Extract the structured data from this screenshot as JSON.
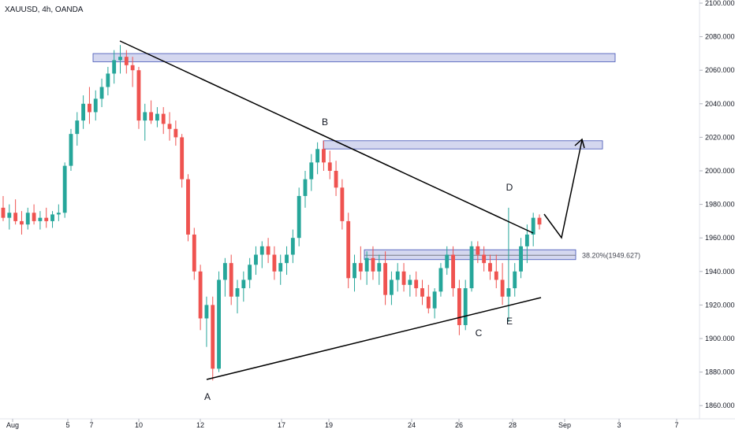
{
  "chart_data": {
    "type": "candlestick",
    "title": "XAUUSD, 4h, OANDA",
    "y_axis": {
      "ticks": [
        "2100.000",
        "2080.000",
        "2060.000",
        "2040.000",
        "2020.000",
        "2000.000",
        "1980.000",
        "1960.000",
        "1940.000",
        "1920.000",
        "1900.000",
        "1880.000",
        "1860.000"
      ],
      "range": [
        1840,
        2105
      ]
    },
    "x_axis": {
      "ticks": [
        "Aug",
        "5",
        "7",
        "10",
        "12",
        "17",
        "19",
        "24",
        "26",
        "28",
        "Sep",
        "3",
        "7"
      ]
    },
    "colors": {
      "up": "#26a69a",
      "down": "#ef5350",
      "zone_fill": "#c5cae9",
      "zone_border": "#3f51b5",
      "line": "#000000"
    },
    "pattern_points": [
      "A",
      "B",
      "C",
      "D",
      "E"
    ],
    "resistance_zones": [
      {
        "low": 2066,
        "high": 2069
      },
      {
        "low": 2014,
        "high": 2017
      },
      {
        "low": 1948,
        "high": 1952
      }
    ],
    "fib_level": {
      "label": "38.20%(1949.627)",
      "value": 1949.627
    },
    "candles": [
      [
        1978,
        1985,
        1970,
        1972
      ],
      [
        1972,
        1980,
        1965,
        1975
      ],
      [
        1975,
        1983,
        1968,
        1970
      ],
      [
        1970,
        1976,
        1962,
        1968
      ],
      [
        1968,
        1978,
        1965,
        1975
      ],
      [
        1975,
        1980,
        1968,
        1970
      ],
      [
        1970,
        1976,
        1965,
        1972
      ],
      [
        1972,
        1978,
        1966,
        1970
      ],
      [
        1970,
        1976,
        1966,
        1974
      ],
      [
        1974,
        1980,
        1970,
        1975
      ],
      [
        1975,
        2005,
        1972,
        2003
      ],
      [
        2003,
        2025,
        2000,
        2022
      ],
      [
        2022,
        2035,
        2015,
        2030
      ],
      [
        2030,
        2045,
        2025,
        2040
      ],
      [
        2040,
        2050,
        2028,
        2035
      ],
      [
        2035,
        2048,
        2030,
        2043
      ],
      [
        2043,
        2055,
        2038,
        2050
      ],
      [
        2050,
        2062,
        2045,
        2058
      ],
      [
        2058,
        2072,
        2052,
        2066
      ],
      [
        2066,
        2075,
        2058,
        2068
      ],
      [
        2068,
        2072,
        2058,
        2063
      ],
      [
        2063,
        2068,
        2050,
        2060
      ],
      [
        2060,
        2062,
        2025,
        2030
      ],
      [
        2030,
        2040,
        2018,
        2035
      ],
      [
        2035,
        2042,
        2028,
        2030
      ],
      [
        2030,
        2038,
        2026,
        2034
      ],
      [
        2034,
        2038,
        2022,
        2028
      ],
      [
        2028,
        2035,
        2018,
        2025
      ],
      [
        2025,
        2030,
        2015,
        2020
      ],
      [
        2020,
        2022,
        1990,
        1995
      ],
      [
        1995,
        1998,
        1958,
        1962
      ],
      [
        1962,
        1966,
        1935,
        1940
      ],
      [
        1940,
        1944,
        1905,
        1912
      ],
      [
        1912,
        1925,
        1895,
        1920
      ],
      [
        1920,
        1925,
        1875,
        1882
      ],
      [
        1882,
        1940,
        1880,
        1935
      ],
      [
        1935,
        1948,
        1925,
        1945
      ],
      [
        1945,
        1950,
        1920,
        1925
      ],
      [
        1925,
        1935,
        1915,
        1930
      ],
      [
        1930,
        1940,
        1922,
        1935
      ],
      [
        1935,
        1948,
        1930,
        1944
      ],
      [
        1944,
        1955,
        1938,
        1950
      ],
      [
        1950,
        1958,
        1942,
        1955
      ],
      [
        1955,
        1960,
        1945,
        1950
      ],
      [
        1950,
        1955,
        1935,
        1940
      ],
      [
        1940,
        1950,
        1932,
        1945
      ],
      [
        1945,
        1955,
        1938,
        1950
      ],
      [
        1950,
        1965,
        1945,
        1960
      ],
      [
        1960,
        1990,
        1955,
        1985
      ],
      [
        1985,
        2000,
        1978,
        1995
      ],
      [
        1995,
        2010,
        1988,
        2005
      ],
      [
        2005,
        2017,
        1998,
        2013
      ],
      [
        2013,
        2018,
        2000,
        2005
      ],
      [
        2005,
        2012,
        1995,
        2000
      ],
      [
        2000,
        2006,
        1985,
        1990
      ],
      [
        1990,
        1995,
        1965,
        1970
      ],
      [
        1970,
        1975,
        1930,
        1936
      ],
      [
        1936,
        1950,
        1928,
        1945
      ],
      [
        1945,
        1955,
        1935,
        1940
      ],
      [
        1940,
        1952,
        1932,
        1948
      ],
      [
        1948,
        1955,
        1935,
        1940
      ],
      [
        1940,
        1950,
        1932,
        1945
      ],
      [
        1945,
        1952,
        1920,
        1926
      ],
      [
        1926,
        1940,
        1920,
        1935
      ],
      [
        1935,
        1945,
        1928,
        1940
      ],
      [
        1940,
        1945,
        1928,
        1932
      ],
      [
        1932,
        1938,
        1925,
        1935
      ],
      [
        1935,
        1940,
        1925,
        1930
      ],
      [
        1930,
        1935,
        1920,
        1925
      ],
      [
        1925,
        1932,
        1915,
        1918
      ],
      [
        1918,
        1930,
        1912,
        1928
      ],
      [
        1928,
        1945,
        1925,
        1942
      ],
      [
        1942,
        1955,
        1938,
        1950
      ],
      [
        1950,
        1955,
        1925,
        1930
      ],
      [
        1930,
        1935,
        1902,
        1908
      ],
      [
        1908,
        1935,
        1905,
        1930
      ],
      [
        1930,
        1958,
        1928,
        1955
      ],
      [
        1955,
        1958,
        1945,
        1950
      ],
      [
        1950,
        1955,
        1940,
        1945
      ],
      [
        1945,
        1950,
        1935,
        1940
      ],
      [
        1940,
        1950,
        1930,
        1935
      ],
      [
        1935,
        1945,
        1920,
        1925
      ],
      [
        1925,
        1978,
        1910,
        1930
      ],
      [
        1930,
        1945,
        1925,
        1940
      ],
      [
        1940,
        1960,
        1936,
        1955
      ],
      [
        1955,
        1968,
        1945,
        1962
      ],
      [
        1962,
        1975,
        1955,
        1972
      ],
      [
        1972,
        1974,
        1965,
        1968
      ]
    ]
  }
}
